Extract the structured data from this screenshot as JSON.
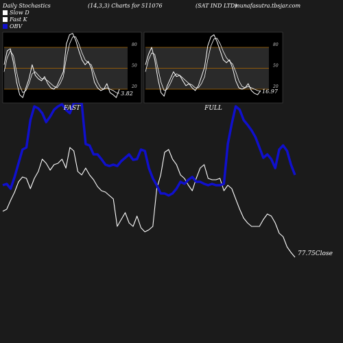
{
  "header": {
    "left": "Daily Stochastics",
    "center": "(14,3,3) Charts for 511076",
    "company": "(SAT IND LTD)",
    "site": "munafasutra.tbsjar.com"
  },
  "legend": [
    {
      "label": "Slow  D",
      "color": "#ffffff"
    },
    {
      "label": "Fast K",
      "color": "#ffffff"
    },
    {
      "label": "OBV",
      "color": "#1010cc"
    }
  ],
  "chart_data": [
    {
      "type": "line",
      "name": "main",
      "x": [
        0,
        1,
        2,
        3,
        4,
        5,
        6,
        7,
        8,
        9,
        10,
        11,
        12,
        13,
        14,
        15,
        16,
        17,
        18,
        19,
        20,
        21,
        22,
        23,
        24,
        25,
        26,
        27,
        28,
        29,
        30,
        31,
        32,
        33,
        34,
        35,
        36,
        37,
        38,
        39,
        40,
        41,
        42,
        43,
        44,
        45,
        46,
        47,
        48,
        49,
        50,
        51,
        52,
        53,
        54,
        55,
        56,
        57,
        58,
        59,
        60,
        61,
        62,
        63,
        64,
        65,
        66,
        67,
        68,
        69,
        70,
        71,
        72,
        73,
        74
      ],
      "series": [
        {
          "name": "OBV",
          "color": "#1010cc",
          "values": [
            270,
            268,
            275,
            258,
            238,
            218,
            215,
            175,
            155,
            158,
            165,
            178,
            170,
            160,
            155,
            152,
            160,
            165,
            150,
            150,
            150,
            210,
            212,
            225,
            225,
            232,
            240,
            242,
            240,
            242,
            235,
            230,
            225,
            233,
            232,
            218,
            220,
            245,
            260,
            270,
            282,
            282,
            285,
            282,
            275,
            265,
            268,
            262,
            258,
            265,
            265,
            268,
            270,
            268,
            270,
            270,
            268,
            210,
            180,
            155,
            160,
            175,
            182,
            190,
            200,
            215,
            230,
            225,
            232,
            245,
            218,
            212,
            220,
            240,
            255
          ]
        },
        {
          "name": "Close",
          "color": "#ffffff",
          "values": [
            308,
            305,
            292,
            280,
            265,
            258,
            260,
            275,
            260,
            250,
            232,
            238,
            248,
            240,
            238,
            232,
            245,
            215,
            220,
            250,
            255,
            245,
            255,
            262,
            272,
            278,
            280,
            285,
            290,
            330,
            320,
            310,
            325,
            330,
            315,
            332,
            338,
            335,
            330,
            275,
            255,
            222,
            218,
            232,
            240,
            255,
            260,
            270,
            278,
            260,
            245,
            240,
            260,
            262,
            262,
            260,
            278,
            270,
            275,
            290,
            305,
            318,
            325,
            330,
            330,
            330,
            320,
            312,
            315,
            325,
            340,
            345,
            360,
            368,
            375
          ]
        }
      ],
      "annotations": [
        {
          "text": "77.75Close"
        }
      ]
    },
    {
      "type": "line",
      "name": "FAST",
      "title": "FAST",
      "yticks": [
        20,
        50,
        80
      ],
      "ylim": [
        0,
        100
      ],
      "series": [
        {
          "name": "Fast K",
          "values": [
            55,
            75,
            78,
            58,
            30,
            12,
            8,
            22,
            35,
            55,
            40,
            35,
            32,
            38,
            28,
            22,
            20,
            25,
            35,
            45,
            85,
            98,
            100,
            90,
            75,
            62,
            55,
            60,
            50,
            30,
            22,
            18,
            20,
            28,
            15,
            12,
            8,
            20
          ]
        },
        {
          "name": "Slow  D",
          "values": [
            45,
            65,
            75,
            68,
            45,
            25,
            15,
            18,
            28,
            42,
            45,
            40,
            35,
            35,
            32,
            28,
            24,
            22,
            28,
            38,
            65,
            85,
            95,
            95,
            85,
            72,
            62,
            58,
            55,
            42,
            30,
            22,
            20,
            22,
            20,
            18,
            15,
            14
          ]
        }
      ],
      "last_value": "3.82"
    },
    {
      "type": "line",
      "name": "FULL",
      "title": "FULL",
      "yticks": [
        20,
        50,
        80
      ],
      "ylim": [
        0,
        100
      ],
      "series": [
        {
          "name": "Fast K",
          "values": [
            55,
            70,
            80,
            62,
            35,
            15,
            10,
            25,
            35,
            45,
            38,
            40,
            32,
            25,
            28,
            22,
            18,
            25,
            38,
            52,
            82,
            95,
            98,
            88,
            75,
            62,
            58,
            62,
            50,
            32,
            22,
            20,
            22,
            28,
            18,
            14,
            12,
            18
          ]
        },
        {
          "name": "Slow  D",
          "values": [
            45,
            62,
            72,
            70,
            50,
            30,
            18,
            20,
            28,
            38,
            42,
            40,
            36,
            32,
            28,
            26,
            22,
            22,
            28,
            38,
            62,
            82,
            92,
            93,
            85,
            74,
            65,
            60,
            56,
            45,
            32,
            24,
            22,
            24,
            22,
            20,
            18,
            17
          ]
        }
      ],
      "last_value": "16.97"
    }
  ]
}
